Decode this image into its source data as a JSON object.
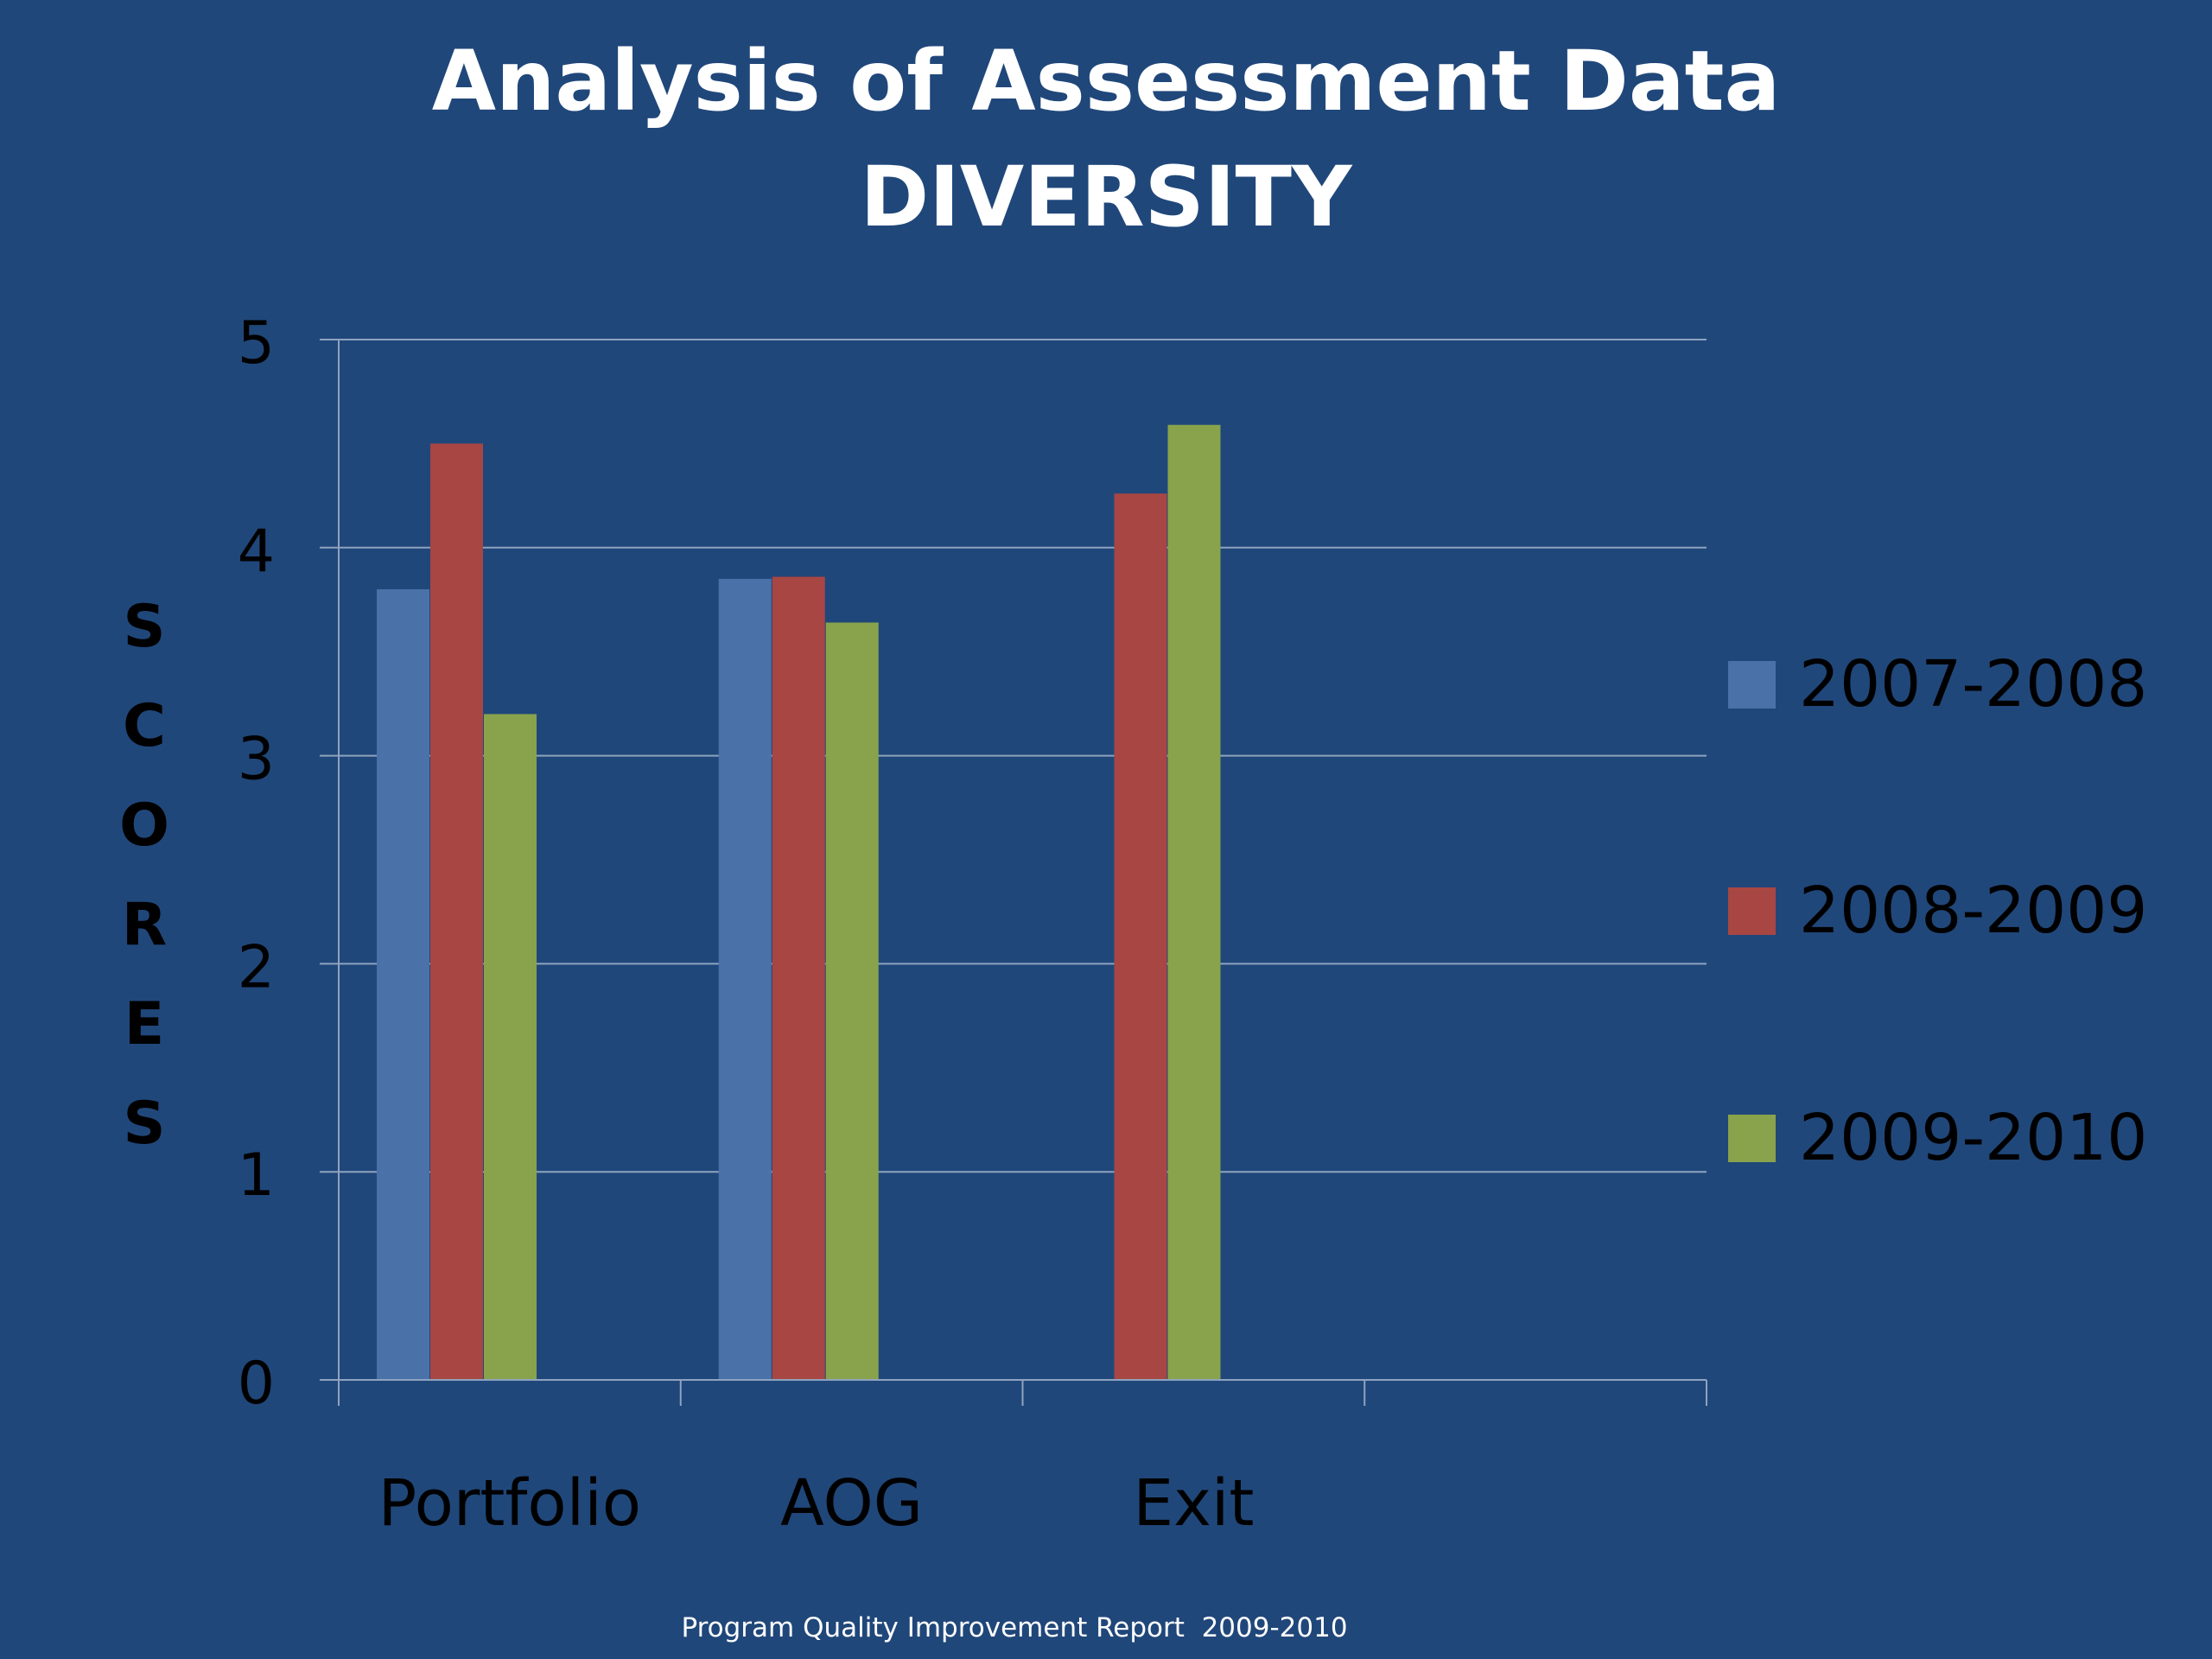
{
  "chart_data": {
    "type": "bar",
    "title": "Analysis of Assessment Data",
    "subtitle": "DIVERSITY",
    "xlabel": "",
    "ylabel": "SCORES",
    "categories": [
      "Portfolio",
      "AOG",
      "Exit",
      ""
    ],
    "series": [
      {
        "name": "2007-2008",
        "color": "#4a72a9",
        "values": [
          3.8,
          3.85,
          null,
          null
        ]
      },
      {
        "name": "2008-2009",
        "color": "#a84643",
        "values": [
          4.5,
          3.86,
          4.26,
          null
        ]
      },
      {
        "name": "2009-2010",
        "color": "#88a34b",
        "values": [
          3.2,
          3.64,
          4.59,
          null
        ]
      }
    ],
    "ylim": [
      0,
      5
    ],
    "yticks": [
      "0",
      "1",
      "2",
      "3",
      "4",
      "5"
    ],
    "grid": true,
    "legend_position": "right"
  },
  "footer": "Program Quality Improvement Report  2009-2010",
  "colors": {
    "background": "#20477a",
    "gridline": "#8ea3bf",
    "axis": "#8ea3bf"
  }
}
